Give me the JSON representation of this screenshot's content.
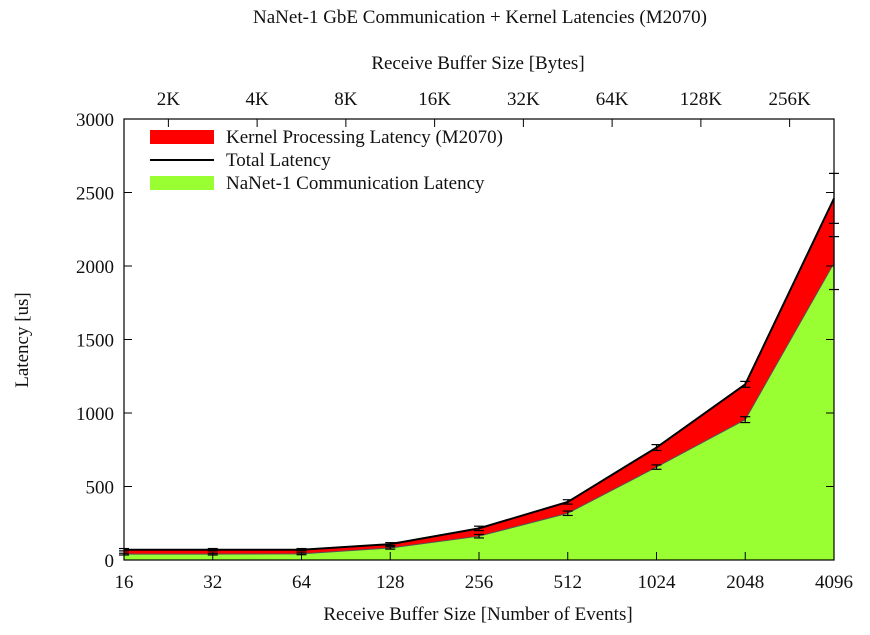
{
  "chart_data": {
    "type": "area",
    "title": "NaNet-1 GbE Communication + Kernel Latencies (M2070)",
    "xlabel": "Receive Buffer Size [Number of Events]",
    "x2label": "Receive Buffer Size [Bytes]",
    "ylabel": "Latency [us]",
    "categories": [
      "16",
      "32",
      "64",
      "128",
      "256",
      "512",
      "1024",
      "2048",
      "4096"
    ],
    "top_ticks": [
      "2K",
      "4K",
      "8K",
      "16K",
      "32K",
      "64K",
      "128K",
      "256K"
    ],
    "ylim": [
      0,
      3000
    ],
    "yticks": [
      0,
      500,
      1000,
      1500,
      2000,
      2500,
      3000
    ],
    "legend_position": "top-left",
    "series": [
      {
        "name": "Kernel Processing Latency (M2070)",
        "kind": "band",
        "color": "#ff0000"
      },
      {
        "name": "Total Latency",
        "kind": "line",
        "color": "#000000",
        "values": [
          70,
          70,
          70,
          108,
          215,
          395,
          765,
          1195,
          2460
        ],
        "errors": [
          8,
          8,
          8,
          10,
          15,
          15,
          20,
          20,
          170
        ]
      },
      {
        "name": "NaNet-1 Communication Latency",
        "kind": "area",
        "color": "#99ff33",
        "values": [
          40,
          40,
          42,
          82,
          162,
          318,
          632,
          955,
          2020
        ],
        "errors": [
          6,
          6,
          6,
          8,
          12,
          15,
          15,
          20,
          180
        ]
      }
    ]
  }
}
